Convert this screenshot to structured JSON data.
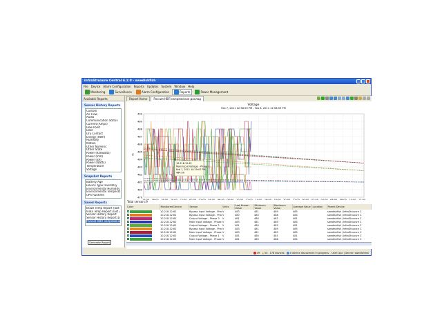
{
  "window": {
    "title": "InfraStruxure Central 6.2.0 - swedishfish"
  },
  "menu": [
    "File",
    "Device",
    "Alarm Configuration",
    "Reports",
    "Updates",
    "System",
    "Window",
    "Help"
  ],
  "toolbar": [
    {
      "label": "Monitoring",
      "color": "#3a9a3a"
    },
    {
      "label": "Surveillance",
      "color": "#2a7ad0"
    },
    {
      "label": "Alarm Configuration",
      "color": "#e07a20"
    },
    {
      "label": "Reports",
      "color": "#2a7ad0",
      "active": true
    },
    {
      "label": "Power Management",
      "color": "#2a9a3a"
    }
  ],
  "left": {
    "tab": "Available Reports",
    "sensor_history": {
      "title": "Sensor History Reports",
      "items": [
        "Custom",
        "Air Flow",
        "Audio",
        "Communication Status",
        "Current (Amps)",
        "Dew Point",
        "Door",
        "Dry Contact",
        "Energy (kWh)",
        "Humidity",
        "Motion",
        "Other Numeric",
        "Other State",
        "Power (Kilowatts)",
        "Power (kVA)",
        "Power (VA)",
        "Power (Watts)",
        "Temperature",
        "Voltage"
      ]
    },
    "snapshot": {
      "title": "Snapshot Reports",
      "items": [
        "Battery Age",
        "Device Type Inventory",
        "Environmental Humidity",
        "Environmental Temperature",
        "UPS Runtime"
      ]
    },
    "saved": {
      "title": "Saved Reports",
      "items": [
        "Brazil Temp Report (last 24 hrs)",
        "India Temp Report (last 24 hrs)",
        "Sensor History Report",
        "Sensor History Report(1)",
        "Россия НВП напряжение доклад"
      ]
    },
    "generate": "Generate Report"
  },
  "main": {
    "tabs": [
      "Report Home",
      "Россия НВП напряжение доклад"
    ],
    "chart_data": {
      "type": "line",
      "title": "Voltage",
      "subtitle": "Feb 7, 2011 12:58:59 PM - Feb 8, 2011 12:58:59 PM",
      "ylabel": "V",
      "ylim": [
        479,
        490
      ],
      "yticks": [
        479,
        480,
        481,
        482,
        483,
        484,
        485,
        486,
        487,
        488,
        489,
        490
      ],
      "xticks": [
        "14:00",
        "16:00",
        "18:00",
        "20:00",
        "22:00",
        "00:00",
        "02:00",
        "04:00",
        "06:00",
        "08:00",
        "10:00",
        "12:00",
        "14:00",
        "16:00",
        "18:00",
        "20:00",
        "22:00",
        "00:00",
        "02:00",
        "04:00",
        "06:00",
        "08:00",
        "10:00",
        "12:00"
      ],
      "grid": true,
      "tooltip": [
        "10.218.12.62",
        "Main Input Voltage - Phase 1",
        "Feb 7, 2011 10:29:07 PM",
        "484.00"
      ]
    },
    "total": "Total sensors:9",
    "columns": [
      "Color",
      "Monitored Device",
      "Sensor",
      "Units",
      "Last Known Value",
      "Minimum Value",
      "Maximum Value",
      "Average Value",
      "Location",
      "Parent Device"
    ],
    "rows": [
      [
        "#3aa53a",
        "10.218.12.62",
        "Bypass Input Voltage - Phase 2",
        "V",
        "483",
        "481",
        "489",
        "485",
        "",
        "swedishfish (InfraStruxure C"
      ],
      [
        "#e07a2a",
        "10.218.12.62",
        "Bypass Input Voltage - Phase 1",
        "V",
        "480",
        "480",
        "488",
        "484",
        "",
        "swedishfish (InfraStruxure C"
      ],
      [
        "#c8247a",
        "10.218.12.62",
        "Output Voltage - Phase 3",
        "V",
        "481",
        "480",
        "482",
        "481",
        "",
        "swedishfish (InfraStruxure C"
      ],
      [
        "#2a3aa0",
        "10.218.12.62",
        "Main Input Voltage - Phase 3",
        "V",
        "483",
        "481",
        "489",
        "485",
        "",
        "swedishfish (InfraStruxure C"
      ],
      [
        "#5ab03a",
        "10.218.12.62",
        "Output Voltage - Phase 2",
        "V",
        "481",
        "480",
        "482",
        "481",
        "",
        "swedishfish (InfraStruxure C"
      ],
      [
        "#e08a2a",
        "10.218.12.62",
        "Bypass Input Voltage - Phase 3",
        "V",
        "483",
        "481",
        "489",
        "485",
        "",
        "swedishfish (InfraStruxure C"
      ],
      [
        "#b01a40",
        "10.218.12.62",
        "Main Input Voltage - Phase 2",
        "V",
        "483",
        "481",
        "489",
        "485",
        "",
        "swedishfish (InfraStruxure C"
      ],
      [
        "#2a4ab0",
        "10.218.12.62",
        "Output Voltage - Phase 1",
        "V",
        "481",
        "480",
        "481",
        "481",
        "",
        "swedishfish (InfraStruxure C"
      ],
      [
        "#3aa53a",
        "10.218.12.62",
        "Main Input Voltage - Phase 1",
        "V",
        "481",
        "480",
        "488",
        "484",
        "",
        "swedishfish (InfraStruxure C"
      ]
    ]
  },
  "status": {
    "alarms": "49",
    "warnings": "50",
    "devices": "178 devices",
    "discovery": "0 device discoveries in progress.",
    "user": "User: apc | Server: swedishfish"
  }
}
